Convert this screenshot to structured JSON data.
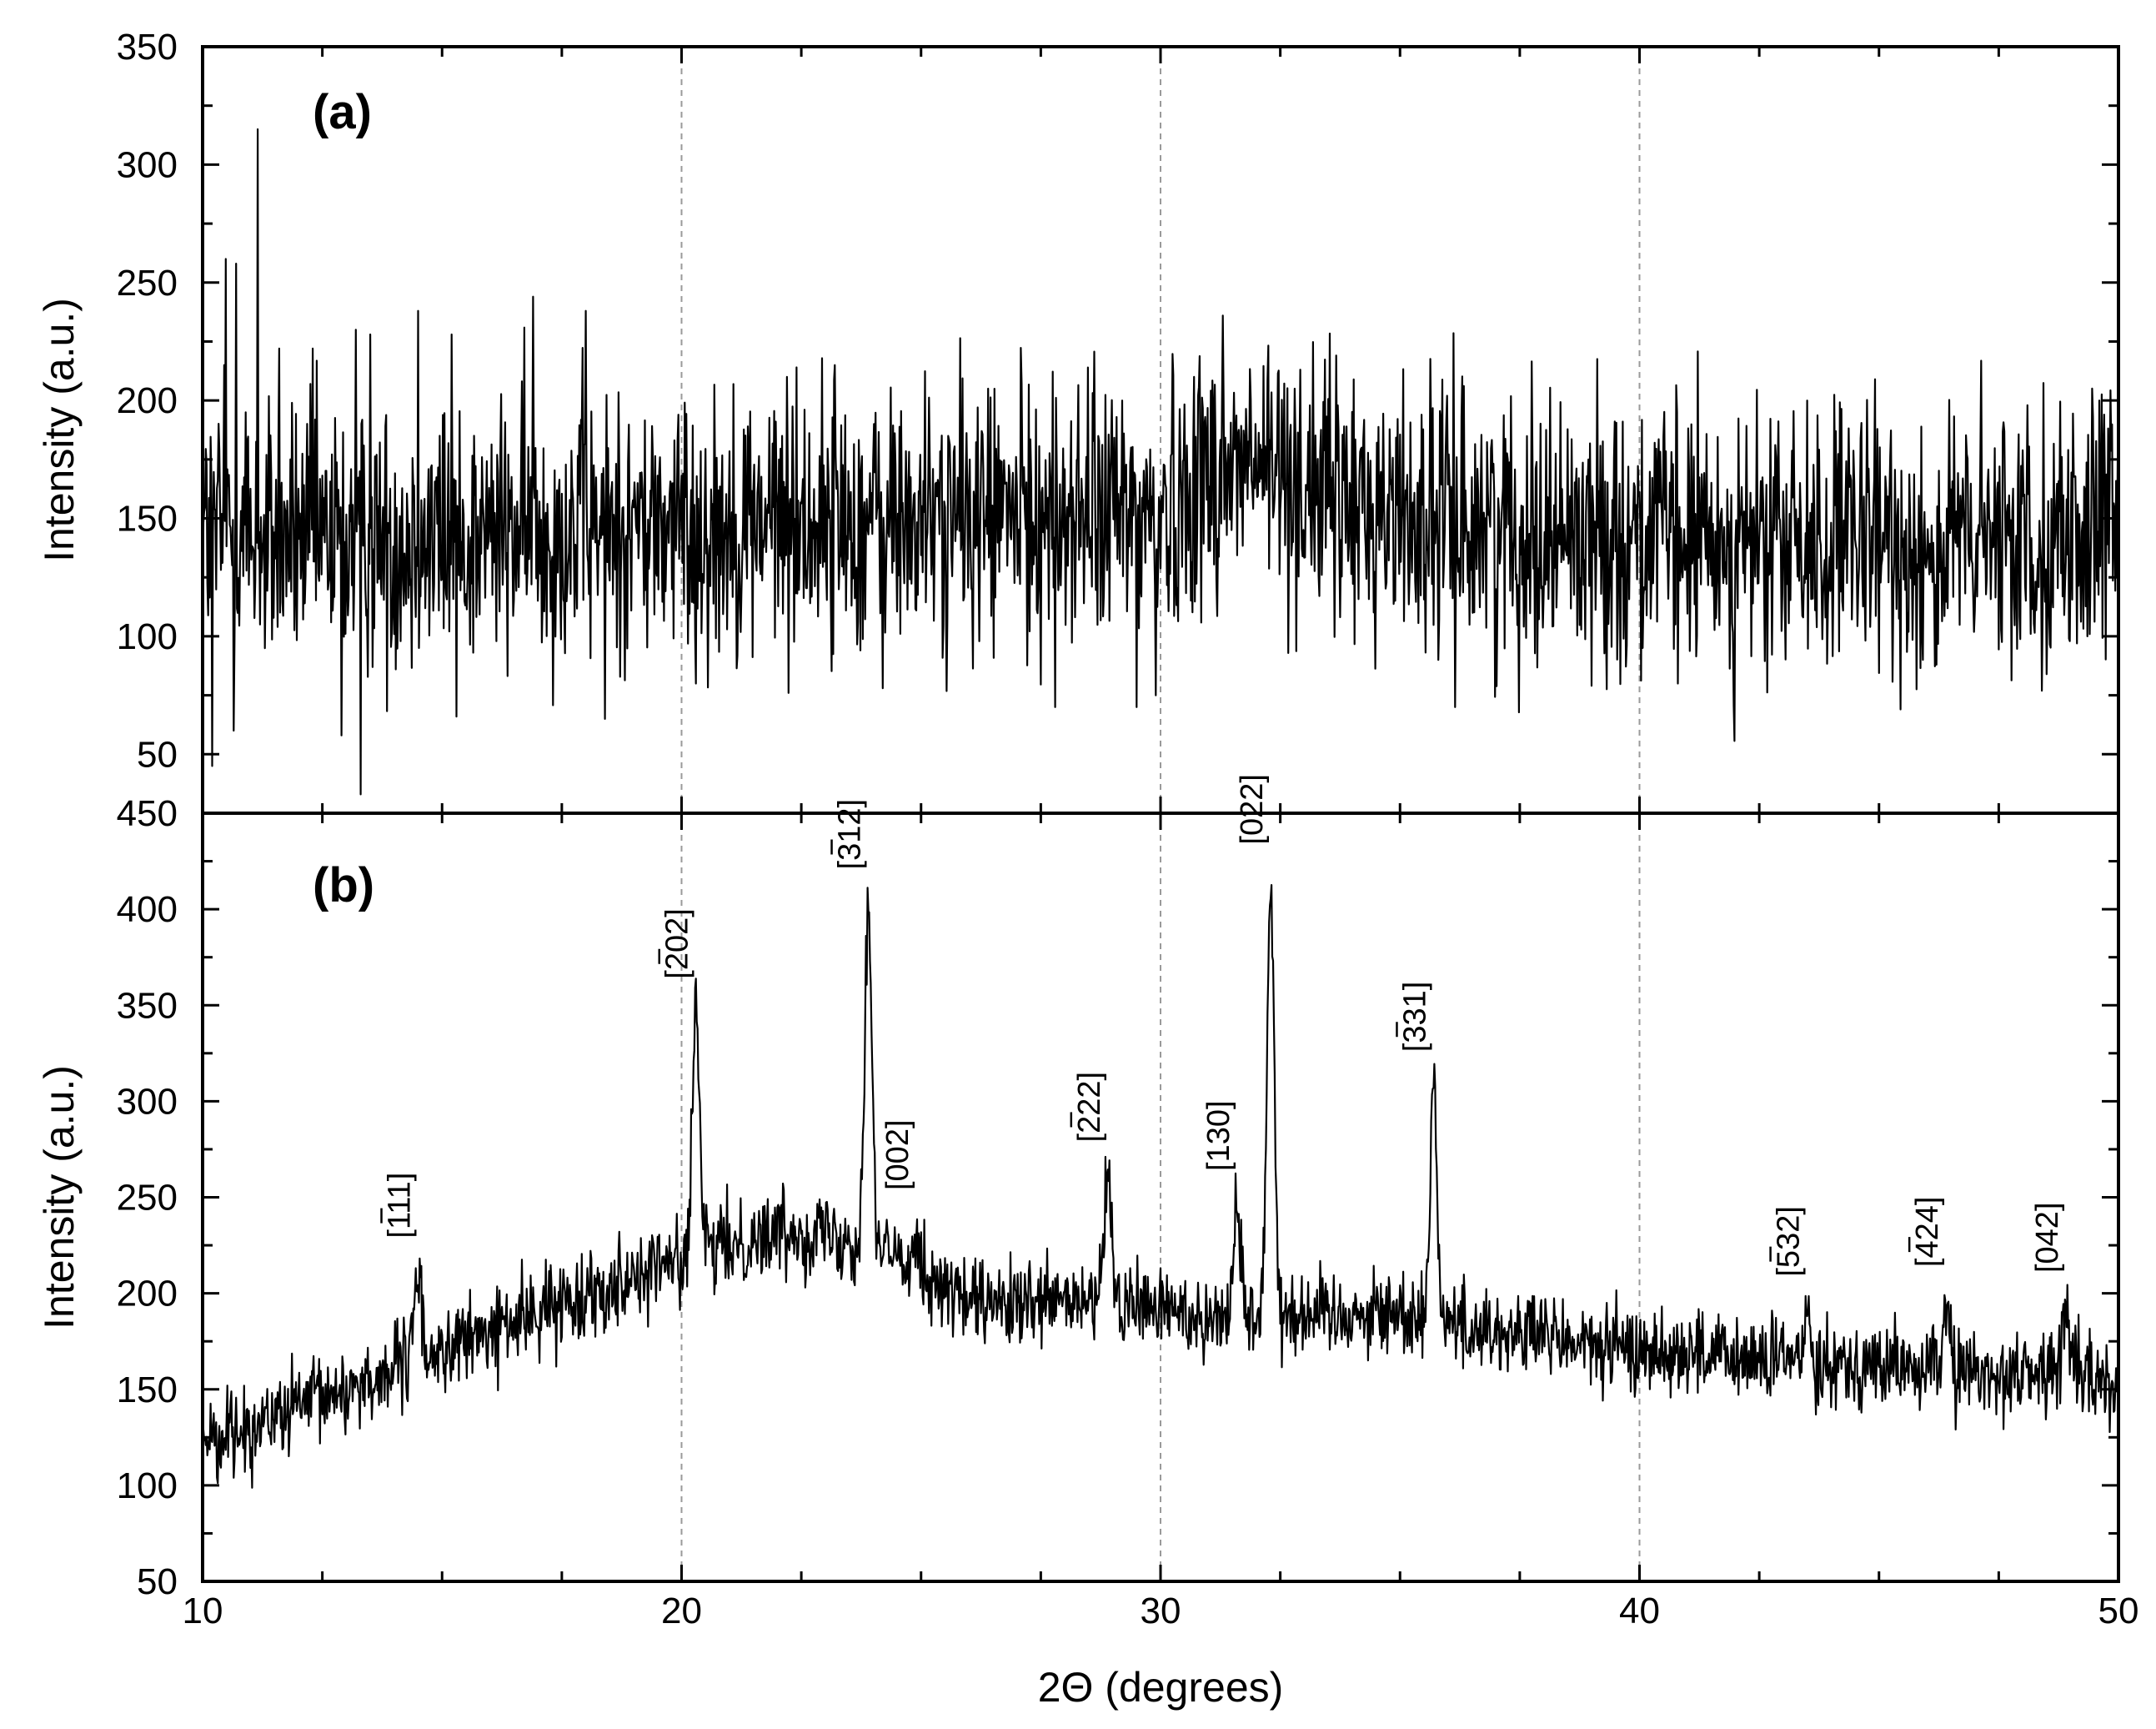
{
  "chart_data": [
    {
      "panel": "a",
      "type": "line",
      "label": "(a)",
      "xlabel": "2Θ (degrees)",
      "ylabel": "Intensity (a.u.)",
      "xlim": [
        10,
        50
      ],
      "ylim": [
        25,
        350
      ],
      "xticks": [
        10,
        20,
        30,
        40,
        50
      ],
      "yticks": [
        50,
        100,
        150,
        200,
        250,
        300,
        350
      ],
      "grid": "vertical dashed at x = 20, 30, 40",
      "noise": 28,
      "baseline": [
        [
          10,
          145
        ],
        [
          12,
          140
        ],
        [
          15,
          142
        ],
        [
          18,
          146
        ],
        [
          20,
          146
        ],
        [
          22,
          150
        ],
        [
          24,
          148
        ],
        [
          26,
          150
        ],
        [
          28,
          152
        ],
        [
          30,
          150
        ],
        [
          31,
          170
        ],
        [
          32,
          172
        ],
        [
          33,
          165
        ],
        [
          34,
          155
        ],
        [
          36,
          150
        ],
        [
          38,
          145
        ],
        [
          40,
          143
        ],
        [
          42,
          138
        ],
        [
          45,
          138
        ],
        [
          48,
          140
        ],
        [
          50,
          145
        ]
      ],
      "spikes": [
        [
          10.2,
          45
        ],
        [
          10.45,
          215
        ],
        [
          10.48,
          260
        ],
        [
          10.65,
          60
        ],
        [
          10.7,
          258
        ],
        [
          10.9,
          195
        ],
        [
          11.15,
          315
        ],
        [
          11.3,
          95
        ],
        [
          11.6,
          222
        ],
        [
          12.3,
          222
        ],
        [
          12.9,
          58
        ],
        [
          13.2,
          230
        ],
        [
          13.3,
          33
        ],
        [
          13.5,
          228
        ],
        [
          14.5,
          238
        ],
        [
          15.2,
          228
        ],
        [
          15.3,
          66
        ],
        [
          16.9,
          244
        ],
        [
          18.0,
          238
        ],
        [
          18.4,
          65
        ],
        [
          19.8,
          120
        ],
        [
          20.3,
          80
        ],
        [
          22.2,
          210
        ],
        [
          23.2,
          215
        ],
        [
          24.2,
          78
        ],
        [
          26.4,
          205
        ],
        [
          27.8,
          70
        ],
        [
          29.2,
          200
        ],
        [
          29.5,
          70
        ],
        [
          29.9,
          75
        ],
        [
          30.7,
          210
        ],
        [
          31.3,
          236
        ],
        [
          32.8,
          205
        ],
        [
          35.8,
          90
        ],
        [
          40.8,
          80
        ],
        [
          43.5,
          200
        ],
        [
          46.2,
          88
        ],
        [
          48.1,
          198
        ],
        [
          49.6,
          200
        ]
      ]
    },
    {
      "panel": "b",
      "type": "line",
      "label": "(b)",
      "xlabel": "2Θ (degrees)",
      "ylabel": "Intensity (a.u.)",
      "xlim": [
        10,
        50
      ],
      "ylim": [
        50,
        450
      ],
      "xticks": [
        10,
        20,
        30,
        40,
        50
      ],
      "yticks": [
        50,
        100,
        150,
        200,
        250,
        300,
        350,
        400,
        450
      ],
      "grid": "vertical dashed at x = 20, 30, 40",
      "noise": 11,
      "baseline": [
        [
          10,
          125
        ],
        [
          11,
          130
        ],
        [
          12,
          140
        ],
        [
          13,
          150
        ],
        [
          14,
          160
        ],
        [
          15,
          170
        ],
        [
          16,
          180
        ],
        [
          17,
          190
        ],
        [
          18,
          200
        ],
        [
          19,
          210
        ],
        [
          20,
          218
        ],
        [
          21,
          225
        ],
        [
          22,
          232
        ],
        [
          23,
          232
        ],
        [
          24,
          225
        ],
        [
          25,
          210
        ],
        [
          26,
          195
        ],
        [
          27,
          192
        ],
        [
          28,
          195
        ],
        [
          29,
          195
        ],
        [
          30,
          192
        ],
        [
          31,
          188
        ],
        [
          32,
          188
        ],
        [
          33,
          190
        ],
        [
          34,
          190
        ],
        [
          35,
          190
        ],
        [
          36,
          185
        ],
        [
          37,
          180
        ],
        [
          38,
          178
        ],
        [
          39,
          172
        ],
        [
          40,
          170
        ],
        [
          41,
          170
        ],
        [
          42,
          165
        ],
        [
          43,
          165
        ],
        [
          44,
          165
        ],
        [
          45,
          162
        ],
        [
          46,
          160
        ],
        [
          47,
          158
        ],
        [
          48,
          158
        ],
        [
          49,
          160
        ],
        [
          50,
          150
        ]
      ],
      "peaks": [
        {
          "x": 14.5,
          "y": 220,
          "label": "[111]",
          "bar_digit": 1
        },
        {
          "x": 20.3,
          "y": 355,
          "label": "[202]",
          "bar_digit": 1
        },
        {
          "x": 23.9,
          "y": 412,
          "label": "[312]",
          "bar_digit": 1
        },
        {
          "x": 24.9,
          "y": 245,
          "label": "[002]",
          "bar_digit": 0
        },
        {
          "x": 28.9,
          "y": 270,
          "label": "[222]",
          "bar_digit": 1
        },
        {
          "x": 31.6,
          "y": 255,
          "label": "[130]",
          "bar_digit": 0
        },
        {
          "x": 32.3,
          "y": 425,
          "label": "[022]",
          "bar_digit": 0
        },
        {
          "x": 35.7,
          "y": 317,
          "label": "[331]",
          "bar_digit": 1
        },
        {
          "x": 43.5,
          "y": 200,
          "label": "[532]",
          "bar_digit": 1
        },
        {
          "x": 46.4,
          "y": 205,
          "label": "[424]",
          "bar_digit": 1
        },
        {
          "x": 48.9,
          "y": 202,
          "label": "[042]",
          "bar_digit": 0
        }
      ]
    }
  ]
}
